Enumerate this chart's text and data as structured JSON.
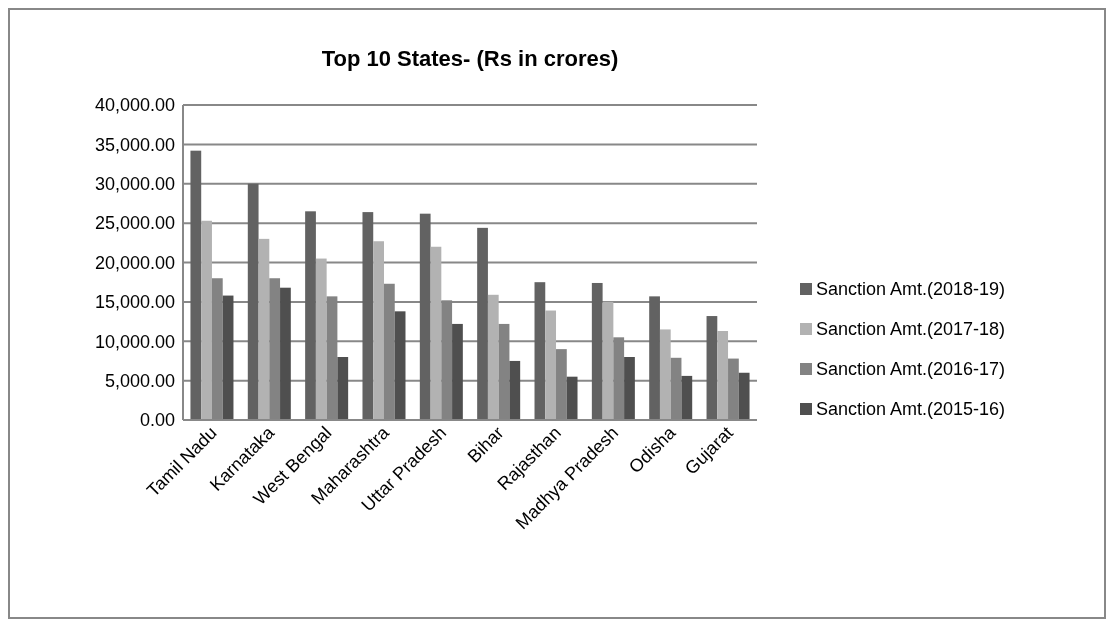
{
  "chart_data": {
    "type": "bar",
    "title": "Top 10 States- (Rs in crores)",
    "categories": [
      "Tamil Nadu",
      "Karnataka",
      "West Bengal",
      "Maharashtra",
      "Uttar Pradesh",
      "Bihar",
      "Rajasthan",
      "Madhya Pradesh",
      "Odisha",
      "Gujarat"
    ],
    "series": [
      {
        "name": "Sanction Amt.(2018-19)",
        "color": "#626262",
        "values": [
          34200,
          30000,
          26500,
          26400,
          26200,
          24400,
          17500,
          17400,
          15700,
          13200
        ]
      },
      {
        "name": "Sanction Amt.(2017-18)",
        "color": "#b2b2b2",
        "values": [
          25300,
          23000,
          20500,
          22700,
          22000,
          15900,
          13900,
          15000,
          11500,
          11300
        ]
      },
      {
        "name": "Sanction Amt.(2016-17)",
        "color": "#838383",
        "values": [
          18000,
          18000,
          15700,
          17300,
          15200,
          12200,
          9000,
          10500,
          7900,
          7800
        ]
      },
      {
        "name": "Sanction Amt.(2015-16)",
        "color": "#4f4f4f",
        "values": [
          15800,
          16800,
          8000,
          13800,
          12200,
          7500,
          5500,
          8000,
          5600,
          6000
        ]
      }
    ],
    "ylim": [
      0,
      40000
    ],
    "yticks": [
      {
        "value": 0,
        "label": "0.00"
      },
      {
        "value": 5000,
        "label": "5,000.00"
      },
      {
        "value": 10000,
        "label": "10,000.00"
      },
      {
        "value": 15000,
        "label": "15,000.00"
      },
      {
        "value": 20000,
        "label": "20,000.00"
      },
      {
        "value": 25000,
        "label": "25,000.00"
      },
      {
        "value": 30000,
        "label": "30,000.00"
      },
      {
        "value": 35000,
        "label": "35,000.00"
      },
      {
        "value": 40000,
        "label": "40,000.00"
      }
    ],
    "grid": "y",
    "legend": "right"
  }
}
